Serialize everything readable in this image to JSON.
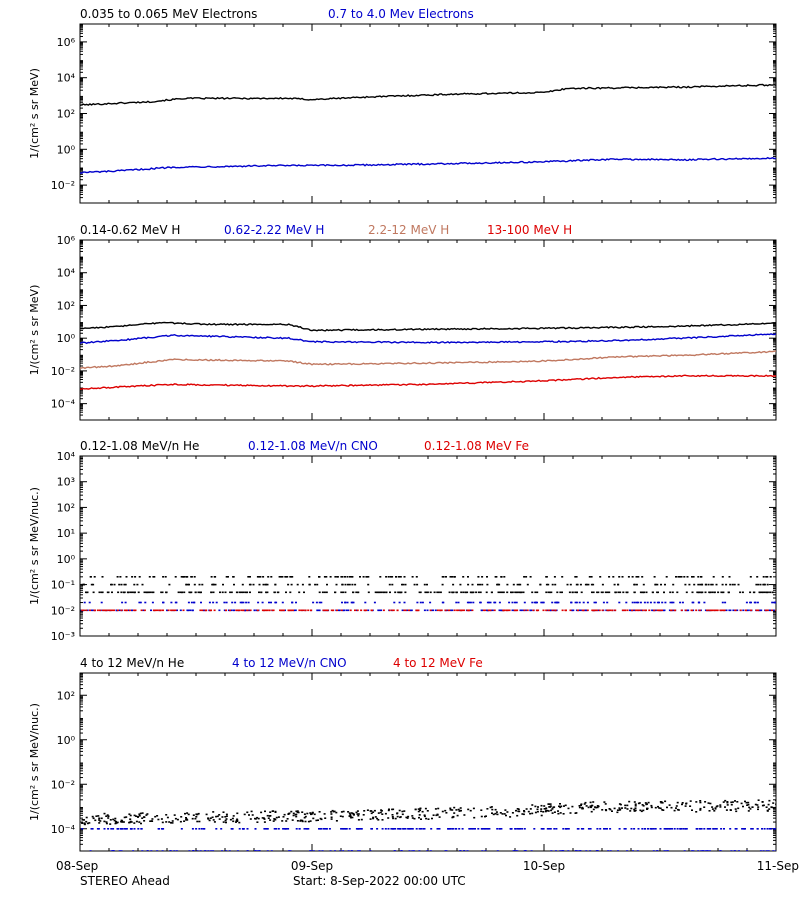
{
  "x_tick_labels": [
    "08-Sep",
    "09-Sep",
    "10-Sep",
    "11-Sep"
  ],
  "footer": {
    "left": "STEREO Ahead",
    "center": "Start:  8-Sep-2022 00:00 UTC"
  },
  "chart_data": [
    {
      "type": "line",
      "x_range_days": [
        0,
        3
      ],
      "y_scale": "log",
      "ylim": [
        0.001,
        10000000
      ],
      "ylabel": "1/(cm² s sr MeV)",
      "yticks": [
        {
          "v": 1000000,
          "label": "10⁶"
        },
        {
          "v": 10000,
          "label": "10⁴"
        },
        {
          "v": 100,
          "label": "10²"
        },
        {
          "v": 1,
          "label": "10⁰"
        },
        {
          "v": 0.01,
          "label": "10⁻²"
        }
      ],
      "series": [
        {
          "name": "0.035 to 0.065 MeV Electrons",
          "color": "#000000",
          "x": [
            0,
            0.3,
            0.45,
            0.9,
            1.0,
            1.2,
            1.6,
            2.0,
            2.1,
            2.6,
            3.0
          ],
          "y": [
            300,
            450,
            700,
            700,
            600,
            800,
            1200,
            1500,
            2500,
            3000,
            4000
          ]
        },
        {
          "name": "0.7 to 4.0 Mev Electrons",
          "color": "#0000cc",
          "x": [
            0,
            0.15,
            0.4,
            0.8,
            1.2,
            1.6,
            2.0,
            2.3,
            2.6,
            3.0
          ],
          "y": [
            0.05,
            0.06,
            0.1,
            0.12,
            0.13,
            0.16,
            0.2,
            0.28,
            0.26,
            0.32
          ]
        }
      ]
    },
    {
      "type": "line",
      "x_range_days": [
        0,
        3
      ],
      "y_scale": "log",
      "ylim": [
        1e-05,
        1000000
      ],
      "ylabel": "1/(cm² s sr MeV)",
      "yticks": [
        {
          "v": 1000000,
          "label": "10⁶"
        },
        {
          "v": 10000,
          "label": "10⁴"
        },
        {
          "v": 100,
          "label": "10²"
        },
        {
          "v": 1,
          "label": "10⁰"
        },
        {
          "v": 0.01,
          "label": "10⁻²"
        },
        {
          "v": 0.0001,
          "label": "10⁻⁴"
        }
      ],
      "series": [
        {
          "name": "0.14-0.62 MeV H",
          "color": "#000000",
          "x": [
            0,
            0.15,
            0.35,
            0.55,
            0.9,
            1.0,
            1.5,
            2.0,
            2.5,
            3.0
          ],
          "y": [
            4,
            5,
            9,
            7,
            7,
            3,
            3.5,
            4,
            5,
            8
          ]
        },
        {
          "name": "0.62-2.22 MeV H",
          "color": "#0000cc",
          "x": [
            0,
            0.15,
            0.4,
            0.9,
            1.0,
            1.5,
            2.0,
            2.3,
            2.6,
            3.0
          ],
          "y": [
            0.5,
            0.7,
            1.5,
            1.0,
            0.6,
            0.55,
            0.6,
            0.7,
            1.0,
            1.8
          ]
        },
        {
          "name": "2.2-12 MeV H",
          "color": "#c07860",
          "x": [
            0,
            0.15,
            0.4,
            0.9,
            1.0,
            1.5,
            2.0,
            2.3,
            2.6,
            3.0
          ],
          "y": [
            0.015,
            0.02,
            0.05,
            0.04,
            0.025,
            0.03,
            0.04,
            0.07,
            0.09,
            0.15
          ]
        },
        {
          "name": "13-100 MeV H",
          "color": "#dd0000",
          "x": [
            0,
            0.15,
            0.4,
            0.9,
            1.0,
            1.5,
            2.0,
            2.3,
            2.6,
            3.0
          ],
          "y": [
            0.0008,
            0.001,
            0.0015,
            0.0012,
            0.0012,
            0.0015,
            0.0025,
            0.004,
            0.005,
            0.005
          ]
        }
      ]
    },
    {
      "type": "scatter",
      "x_range_days": [
        0,
        3
      ],
      "y_scale": "log",
      "ylim": [
        0.001,
        10000
      ],
      "ylabel": "1/(cm² s sr MeV/nuc.)",
      "yticks": [
        {
          "v": 10000,
          "label": "10⁴"
        },
        {
          "v": 1000,
          "label": "10³"
        },
        {
          "v": 100,
          "label": "10²"
        },
        {
          "v": 10,
          "label": "10¹"
        },
        {
          "v": 1,
          "label": "10⁰"
        },
        {
          "v": 0.1,
          "label": "10⁻¹"
        },
        {
          "v": 0.01,
          "label": "10⁻²"
        },
        {
          "v": 0.001,
          "label": "10⁻³"
        }
      ],
      "series": [
        {
          "name": "0.12-1.08 MeV/n He",
          "color": "#000000",
          "levels": [
            0.05,
            0.1,
            0.2
          ],
          "x_range": [
            0,
            3
          ]
        },
        {
          "name": "0.12-1.08 MeV/n CNO",
          "color": "#0000cc",
          "levels": [
            0.01,
            0.02
          ],
          "x_range": [
            0,
            3
          ]
        },
        {
          "name": "0.12-1.08 MeV Fe",
          "color": "#dd0000",
          "levels": [
            0.01
          ],
          "x_range": [
            0,
            3
          ]
        }
      ]
    },
    {
      "type": "scatter",
      "x_range_days": [
        0,
        3
      ],
      "y_scale": "log",
      "ylim": [
        1e-05,
        1000
      ],
      "ylabel": "1/(cm² s sr MeV/nuc.)",
      "yticks": [
        {
          "v": 100,
          "label": "10²"
        },
        {
          "v": 1,
          "label": "10⁰"
        },
        {
          "v": 0.01,
          "label": "10⁻²"
        },
        {
          "v": 0.0001,
          "label": "10⁻⁴"
        }
      ],
      "series": [
        {
          "name": "4 to 12 MeV/n He",
          "color": "#000000",
          "x": [
            0,
            1.0,
            1.8,
            2.2,
            3.0
          ],
          "y": [
            0.0003,
            0.0004,
            0.0006,
            0.001,
            0.0012
          ]
        },
        {
          "name": "4 to 12 MeV/n CNO",
          "color": "#0000cc",
          "levels": [
            0.0001,
            1e-05
          ],
          "x_range": [
            0,
            3
          ]
        },
        {
          "name": "4 to 12 MeV Fe",
          "color": "#dd0000",
          "levels": [],
          "x_range": [
            0,
            3
          ]
        }
      ]
    }
  ]
}
